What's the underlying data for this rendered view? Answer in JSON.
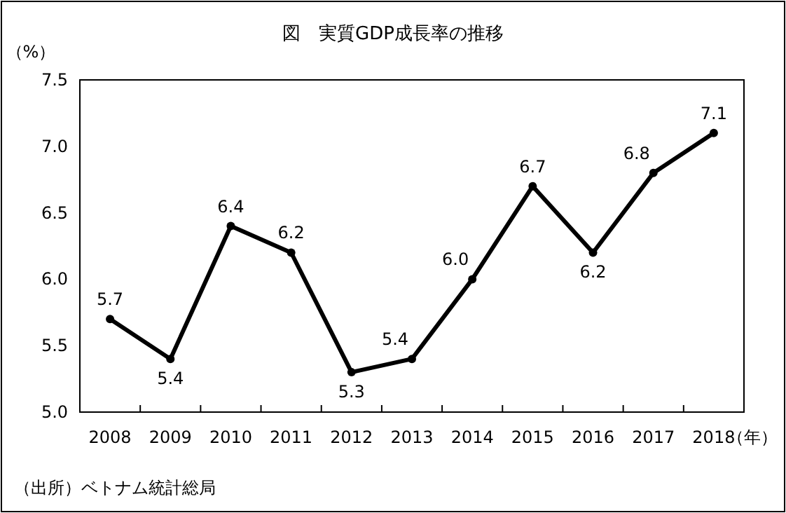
{
  "chart_data": {
    "type": "line",
    "title": "図　実質GDP成長率の推移",
    "ylabel": "（%）",
    "xlabel": "（年）",
    "annotations": [
      "（出所）ベトナム統計総局"
    ],
    "categories": [
      "2008",
      "2009",
      "2010",
      "2011",
      "2012",
      "2013",
      "2014",
      "2015",
      "2016",
      "2017",
      "2018"
    ],
    "series": [
      {
        "color": "#000000",
        "values": [
          5.7,
          5.4,
          6.4,
          6.2,
          5.3,
          5.4,
          6.0,
          6.7,
          6.2,
          6.8,
          7.1
        ],
        "value_labels": [
          "5.7",
          "5.4",
          "6.4",
          "6.2",
          "5.3",
          "5.4",
          "6.0",
          "6.7",
          "6.2",
          "6.8",
          "7.1"
        ]
      }
    ],
    "ylim": [
      5.0,
      7.5
    ],
    "yticks": [
      {
        "value": 5.0,
        "label": "5.0"
      },
      {
        "value": 5.5,
        "label": "5.5"
      },
      {
        "value": 6.0,
        "label": "6.0"
      },
      {
        "value": 6.5,
        "label": "6.5"
      },
      {
        "value": 7.0,
        "label": "7.0"
      },
      {
        "value": 7.5,
        "label": "7.5"
      }
    ],
    "marker": "circle",
    "line_style": "solid"
  }
}
